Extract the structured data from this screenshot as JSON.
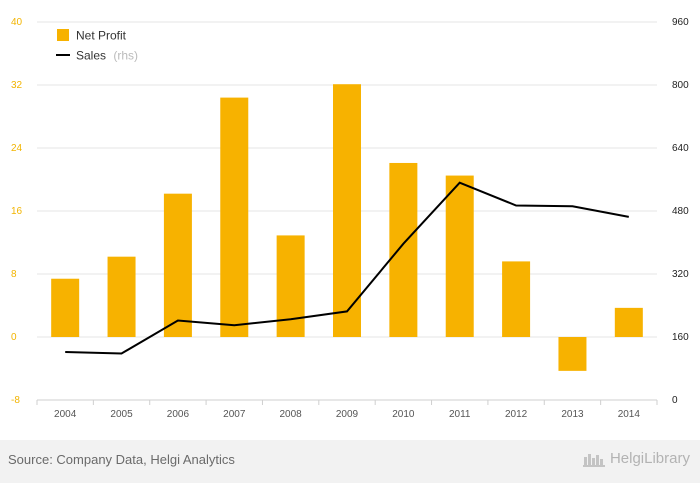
{
  "chart_data": {
    "type": "bar+line",
    "categories": [
      "2004",
      "2005",
      "2006",
      "2007",
      "2008",
      "2009",
      "2010",
      "2011",
      "2012",
      "2013",
      "2014"
    ],
    "series": [
      {
        "name": "Net Profit",
        "type": "bar",
        "axis": "left",
        "color": "#f7b200",
        "values": [
          7.4,
          10.2,
          18.2,
          30.4,
          12.9,
          32.1,
          22.1,
          20.5,
          9.6,
          -4.3,
          3.7
        ]
      },
      {
        "name": "Sales",
        "name_suffix": "(rhs)",
        "type": "line",
        "axis": "right",
        "color": "#000000",
        "values": [
          122,
          118,
          202,
          190,
          205,
          225,
          397,
          552,
          494,
          492,
          465
        ]
      }
    ],
    "y_left": {
      "ticks": [
        "40",
        "32",
        "24",
        "16",
        "8",
        "0",
        "-8"
      ],
      "ylim": [
        -8,
        40
      ]
    },
    "y_right": {
      "ticks": [
        "960",
        "800",
        "640",
        "480",
        "320",
        "160",
        "0"
      ],
      "ylim": [
        0,
        960
      ]
    },
    "legend_position": "top-left",
    "grid": true
  },
  "footer": {
    "source": "Source: Company Data, Helgi Analytics",
    "brand": "HelgiLibrary"
  },
  "colors": {
    "accent": "#f7b200",
    "grid": "#e6e6e6",
    "footer_bg": "#f2f2f2"
  }
}
